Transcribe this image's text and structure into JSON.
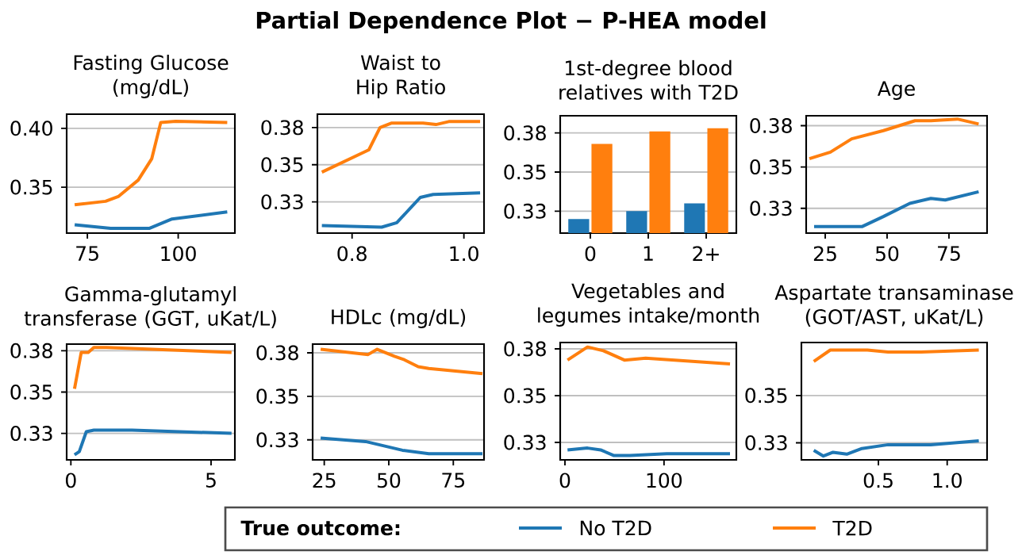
{
  "chart_data": [
    {
      "type": "other",
      "title": "Partial Dependence Plot − P-HEA model"
    },
    {
      "type": "line",
      "title": "Fasting Glucose (mg/dL)",
      "xlim": [
        69.3,
        115.6
      ],
      "xticks": [
        75,
        100
      ],
      "ylim": [
        0.311,
        0.412
      ],
      "yticks": [
        {
          "value": 0.35,
          "label": "0.35"
        },
        {
          "value": 0.4,
          "label": "0.40"
        }
      ],
      "grid": "y",
      "series": [
        {
          "color": "#1f77b4",
          "x": [
            71.5,
            81.4,
            92,
            98.3,
            113.5
          ],
          "values": [
            0.318,
            0.315,
            0.315,
            0.323,
            0.329
          ]
        },
        {
          "color": "#ff7f0e",
          "x": [
            71.5,
            80,
            83.5,
            89,
            92.7,
            95.2,
            99.3,
            113.5
          ],
          "values": [
            0.335,
            0.338,
            0.342,
            0.356,
            0.374,
            0.405,
            0.406,
            0.405
          ]
        }
      ]
    },
    {
      "type": "line",
      "title": "Waist to Hip Ratio",
      "xlim": [
        0.738,
        1.036
      ],
      "xticks": [
        0.8,
        {
          "value": 1.0,
          "label": "1.0"
        }
      ],
      "ylim": [
        0.304,
        0.384
      ],
      "yticks": [
        {
          "value": 0.325,
          "label": "0.33"
        },
        {
          "value": 0.35,
          "label": "0.35"
        },
        {
          "value": 0.375,
          "label": "0.38"
        }
      ],
      "grid": "y",
      "series": [
        {
          "color": "#1f77b4",
          "x": [
            0.746,
            0.853,
            0.88,
            0.922,
            0.945,
            1.029
          ],
          "values": [
            0.309,
            0.308,
            0.311,
            0.328,
            0.33,
            0.331
          ]
        },
        {
          "color": "#ff7f0e",
          "x": [
            0.746,
            0.83,
            0.85,
            0.871,
            0.927,
            0.95,
            0.973,
            1.029
          ],
          "values": [
            0.345,
            0.36,
            0.375,
            0.378,
            0.378,
            0.377,
            0.379,
            0.379
          ]
        }
      ]
    },
    {
      "type": "bar",
      "title": "1st-degree blood relatives with T2D",
      "categories": [
        "0",
        "1",
        "2+"
      ],
      "ylim": [
        0.311,
        0.386
      ],
      "yticks": [
        {
          "value": 0.325,
          "label": "0.33"
        },
        {
          "value": 0.35,
          "label": "0.35"
        },
        {
          "value": 0.375,
          "label": "0.38"
        }
      ],
      "grid": "y",
      "series": [
        {
          "color": "#1f77b4",
          "values": [
            0.32,
            0.325,
            0.33
          ]
        },
        {
          "color": "#ff7f0e",
          "values": [
            0.368,
            0.376,
            0.378
          ]
        }
      ]
    },
    {
      "type": "line",
      "title": "Age",
      "xlim": [
        17.3,
        90.4
      ],
      "xticks": [
        25,
        50,
        75
      ],
      "ylim": [
        0.31,
        0.381
      ],
      "yticks": [
        {
          "value": 0.325,
          "label": "0.33"
        },
        {
          "value": 0.35,
          "label": "0.35"
        },
        {
          "value": 0.375,
          "label": "0.38"
        }
      ],
      "grid": "y",
      "series": [
        {
          "color": "#1f77b4",
          "x": [
            20.5,
            40,
            48.5,
            59.2,
            67.7,
            73.5,
            87
          ],
          "values": [
            0.314,
            0.314,
            0.32,
            0.328,
            0.331,
            0.33,
            0.335
          ]
        },
        {
          "color": "#ff7f0e",
          "x": [
            18.6,
            27.1,
            35.7,
            48.5,
            61.3,
            67.7,
            78.4,
            87
          ],
          "values": [
            0.355,
            0.359,
            0.367,
            0.372,
            0.378,
            0.378,
            0.379,
            0.376
          ]
        }
      ]
    },
    {
      "type": "line",
      "title": "Gamma-glutamyl transferase (GGT, uKat/L)",
      "xlim": [
        -0.15,
        5.85
      ],
      "xticks": [
        0,
        5
      ],
      "ylim": [
        0.309,
        0.379
      ],
      "yticks": [
        {
          "value": 0.325,
          "label": "0.33"
        },
        {
          "value": 0.35,
          "label": "0.35"
        },
        {
          "value": 0.375,
          "label": "0.38"
        }
      ],
      "grid": "y",
      "series": [
        {
          "color": "#1f77b4",
          "x": [
            0.13,
            0.3,
            0.55,
            0.82,
            2.18,
            5.73
          ],
          "values": [
            0.312,
            0.314,
            0.326,
            0.327,
            0.327,
            0.325
          ]
        },
        {
          "color": "#ff7f0e",
          "x": [
            0.13,
            0.37,
            0.62,
            0.82,
            1.27,
            5.73
          ],
          "values": [
            0.352,
            0.374,
            0.374,
            0.377,
            0.377,
            0.374
          ]
        }
      ]
    },
    {
      "type": "line",
      "title": "HDLc (mg/dL)",
      "xlim": [
        20.5,
        86.9
      ],
      "xticks": [
        25,
        50,
        75
      ],
      "ylim": [
        0.3135,
        0.38
      ],
      "yticks": [
        {
          "value": 0.325,
          "label": "0.33"
        },
        {
          "value": 0.35,
          "label": "0.35"
        },
        {
          "value": 0.375,
          "label": "0.38"
        }
      ],
      "grid": "y",
      "series": [
        {
          "color": "#1f77b4",
          "x": [
            23.6,
            41,
            55.3,
            65.5,
            72.8,
            86.3
          ],
          "values": [
            0.326,
            0.324,
            0.319,
            0.317,
            0.317,
            0.317
          ]
        },
        {
          "color": "#ff7f0e",
          "x": [
            23.6,
            42,
            45.5,
            52.2,
            56,
            61.4,
            65.5,
            86.3
          ],
          "values": [
            0.377,
            0.374,
            0.377,
            0.373,
            0.371,
            0.367,
            0.366,
            0.363
          ]
        }
      ]
    },
    {
      "type": "line",
      "title": "Vegetables and legumes intake/month",
      "xlim": [
        -4.8,
        173
      ],
      "xticks": [
        0,
        100
      ],
      "ylim": [
        0.3157,
        0.3784
      ],
      "yticks": [
        {
          "value": 0.325,
          "label": "0.33"
        },
        {
          "value": 0.35,
          "label": "0.35"
        },
        {
          "value": 0.375,
          "label": "0.38"
        }
      ],
      "grid": "y",
      "series": [
        {
          "color": "#1f77b4",
          "x": [
            2.6,
            22.8,
            36,
            49.5,
            65.5,
            102.7,
            166.6
          ],
          "values": [
            0.321,
            0.322,
            0.321,
            0.318,
            0.318,
            0.319,
            0.319
          ]
        },
        {
          "color": "#ff7f0e",
          "x": [
            2.6,
            22.8,
            38.8,
            60,
            81.5,
            166.6
          ],
          "values": [
            0.369,
            0.376,
            0.374,
            0.369,
            0.37,
            0.367
          ]
        }
      ]
    },
    {
      "type": "line",
      "title": "Aspartate transaminase (GOT/AST, uKat/L)",
      "xlim": [
        -0.06,
        1.29
      ],
      "xticks": [
        0.5,
        {
          "value": 1.0,
          "label": "1.0"
        }
      ],
      "ylim": [
        0.316,
        0.378
      ],
      "yticks": [
        {
          "value": 0.325,
          "label": "0.33"
        },
        {
          "value": 0.35,
          "label": "0.35"
        }
      ],
      "grid": "y",
      "legend": "bottom",
      "legend_title": "True outcome:",
      "series": [
        {
          "name": "No T2D",
          "color": "#1f77b4",
          "x": [
            0.03,
            0.1,
            0.17,
            0.27,
            0.38,
            0.57,
            0.88,
            1.23
          ],
          "values": [
            0.321,
            0.318,
            0.32,
            0.319,
            0.322,
            0.324,
            0.324,
            0.326
          ]
        },
        {
          "name": "T2D",
          "color": "#ff7f0e",
          "x": [
            0.03,
            0.15,
            0.42,
            0.57,
            0.81,
            1.23
          ],
          "values": [
            0.368,
            0.374,
            0.374,
            0.373,
            0.373,
            0.374
          ]
        }
      ]
    }
  ]
}
